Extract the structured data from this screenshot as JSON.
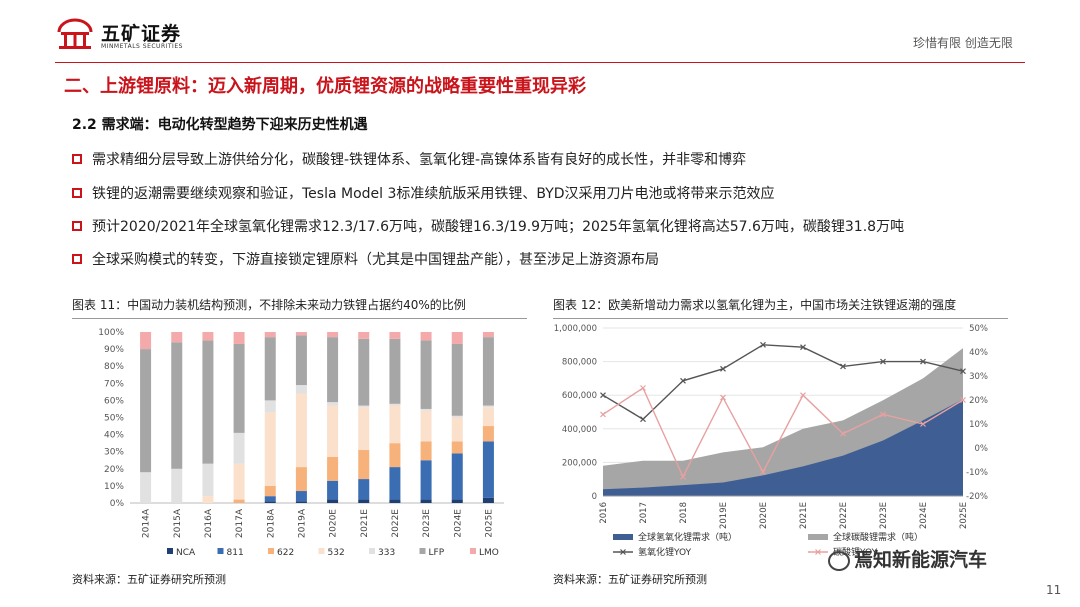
{
  "header": {
    "logo_cn": "五矿证券",
    "logo_en": "MINMETALS SECURITIES",
    "slogan": "珍惜有限 创造无限",
    "accent_color": "#c9141b"
  },
  "main_title": "二、上游锂原料：迈入新周期，优质锂资源的战略重要性重现异彩",
  "subtitle": "2.2 需求端：电动化转型趋势下迎来历史性机遇",
  "bullets": [
    "需求精细分层导致上游供给分化，碳酸锂-铁锂体系、氢氧化锂-高镍体系皆有良好的成长性，并非零和博弈",
    "铁锂的返潮需要继续观察和验证，Tesla Model 3标准续航版采用铁锂、BYD汉采用刀片电池或将带来示范效应",
    "预计2020/2021年全球氢氧化锂需求12.3/17.6万吨，碳酸锂16.3/19.9万吨；2025年氢氧化锂将高达57.6万吨，碳酸锂31.8万吨",
    "全球采购模式的转变，下游直接锁定锂原料（尤其是中国锂盐产能），甚至涉足上游资源布局"
  ],
  "figures": {
    "left_title": "图表 11：中国动力装机结构预测，不排除未来动力铁锂占据约40%的比例",
    "right_title": "图表 12：欧美新增动力需求以氢氧化锂为主，中国市场关注铁锂返潮的强度",
    "left_source": "资料来源：五矿证券研究所预测",
    "right_source": "资料来源：五矿证券研究所预测"
  },
  "watermark": "焉知新能源汽车",
  "page_number": "11",
  "chart_data": [
    {
      "type": "bar",
      "stacked": true,
      "percent": true,
      "categories": [
        "2014A",
        "2015A",
        "2016A",
        "2017A",
        "2018A",
        "2019A",
        "2020E",
        "2021E",
        "2022E",
        "2023E",
        "2024E",
        "2025E"
      ],
      "y_ticks": [
        "0%",
        "10%",
        "20%",
        "30%",
        "40%",
        "50%",
        "60%",
        "70%",
        "80%",
        "90%",
        "100%"
      ],
      "ylim": [
        0,
        100
      ],
      "legend_position": "bottom",
      "series": [
        {
          "name": "NCA",
          "color": "#1f3f73",
          "values": [
            0,
            0,
            0,
            0,
            1,
            1,
            2,
            2,
            2,
            2,
            2,
            3
          ]
        },
        {
          "name": "811",
          "color": "#3b6db3",
          "values": [
            0,
            0,
            0,
            0,
            3,
            6,
            11,
            12,
            19,
            23,
            27,
            33
          ]
        },
        {
          "name": "622",
          "color": "#f7b27c",
          "values": [
            0,
            0,
            0,
            2,
            6,
            14,
            14,
            17,
            14,
            11,
            7,
            9
          ]
        },
        {
          "name": "532",
          "color": "#fbe0cc",
          "values": [
            0,
            0,
            4,
            21,
            43,
            43,
            30,
            25,
            22,
            18,
            14,
            11
          ]
        },
        {
          "name": "333",
          "color": "#e1e1e1",
          "values": [
            18,
            20,
            19,
            18,
            7,
            5,
            2,
            1,
            1,
            1,
            1,
            1
          ]
        },
        {
          "name": "LFP",
          "color": "#a6a6a6",
          "values": [
            72,
            74,
            72,
            52,
            37,
            29,
            38,
            39,
            38,
            40,
            42,
            40
          ]
        },
        {
          "name": "LMO",
          "color": "#f4aaaa",
          "values": [
            10,
            6,
            5,
            7,
            3,
            2,
            3,
            4,
            4,
            5,
            7,
            3
          ]
        }
      ]
    },
    {
      "type": "area",
      "categories": [
        "2016",
        "2017",
        "2018",
        "2019E",
        "2020E",
        "2021E",
        "2022E",
        "2023E",
        "2024E",
        "2025E"
      ],
      "y_ticks": [
        "0",
        "200,000",
        "400,000",
        "600,000",
        "800,000",
        "1,000,000"
      ],
      "ylim": [
        0,
        1000000
      ],
      "y2_ticks": [
        "-20%",
        "-10%",
        "0%",
        "10%",
        "20%",
        "30%",
        "40%",
        "50%"
      ],
      "y2lim": [
        -20,
        50
      ],
      "legend_position": "bottom",
      "series": [
        {
          "name": "全球碳酸锂需求（吨）",
          "kind": "area",
          "color": "#a6a6a6",
          "values": [
            180000,
            210000,
            210000,
            260000,
            290000,
            400000,
            450000,
            570000,
            700000,
            880000
          ]
        },
        {
          "name": "全球氢氧化锂需求（吨）",
          "kind": "area",
          "color": "#3f5f94",
          "values": [
            40000,
            50000,
            65000,
            80000,
            123000,
            176000,
            240000,
            330000,
            450000,
            576000
          ]
        },
        {
          "name": "氢氧化锂YOY",
          "kind": "line",
          "axis": "right",
          "color": "#555555",
          "values": [
            22,
            12,
            28,
            33,
            43,
            42,
            34,
            36,
            36,
            32
          ]
        },
        {
          "name": "碳酸锂YOY",
          "kind": "line",
          "axis": "right",
          "color": "#e8a0a0",
          "values": [
            14,
            25,
            -12,
            21,
            -10,
            22,
            6,
            14,
            10,
            20
          ]
        }
      ]
    }
  ]
}
